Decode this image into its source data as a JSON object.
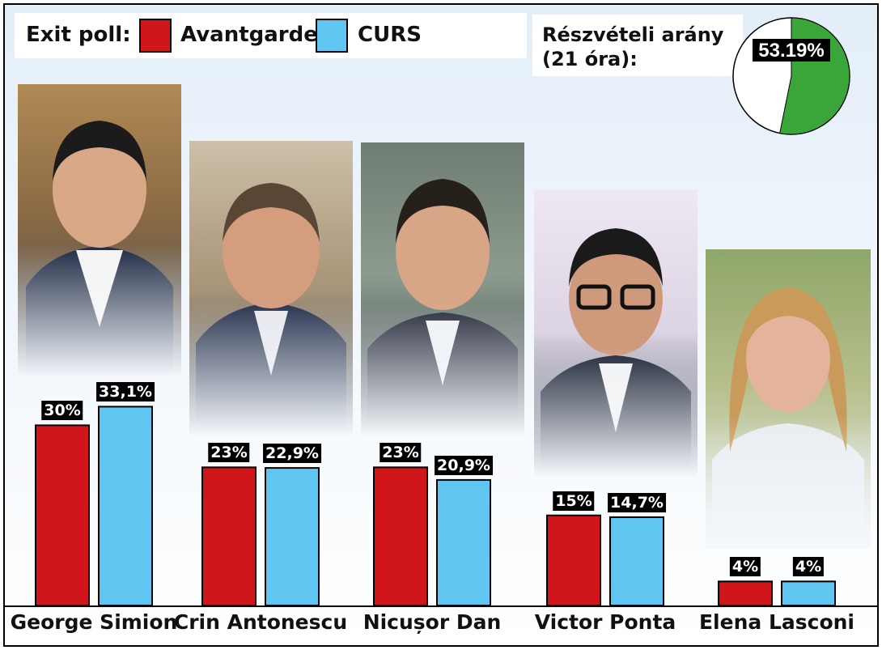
{
  "legend": {
    "title": "Exit poll:",
    "items": [
      {
        "label": "Avantgarde,",
        "color": "#d0151b"
      },
      {
        "label": "CURS",
        "color": "#5ec6f0"
      }
    ]
  },
  "turnout": {
    "label_line1": "Részvételi arány",
    "label_line2": "(21 óra):",
    "value_label": "53.19%",
    "value": 53.19,
    "pie_color": "#3aa63a"
  },
  "chart_data": {
    "type": "bar",
    "categories": [
      "George Simion",
      "Crin Antonescu",
      "Nicușor Dan",
      "Victor Ponta",
      "Elena Lasconi"
    ],
    "series": [
      {
        "name": "Avantgarde",
        "values": [
          30,
          23,
          23,
          15,
          4
        ],
        "labels": [
          "30%",
          "23%",
          "23%",
          "15%",
          "4%"
        ],
        "color": "#d0151b"
      },
      {
        "name": "CURS",
        "values": [
          33.1,
          22.9,
          20.9,
          14.7,
          4
        ],
        "labels": [
          "33,1%",
          "22,9%",
          "20,9%",
          "14,7%",
          "4%"
        ],
        "color": "#5ec6f0"
      }
    ],
    "ylim": [
      0,
      40
    ]
  }
}
